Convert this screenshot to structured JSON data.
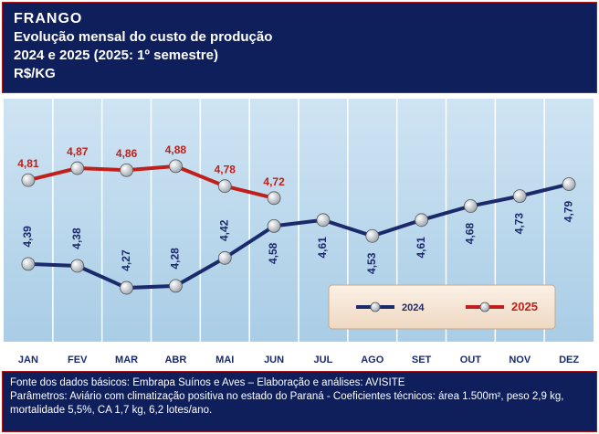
{
  "header": {
    "title": "FRANGO",
    "subtitle": "Evolução mensal do custo de produção",
    "period": "2024 e 2025 (2025: 1º semestre)",
    "unit": "R$/KG"
  },
  "chart_data": {
    "type": "line",
    "categories": [
      "JAN",
      "FEV",
      "MAR",
      "ABR",
      "MAI",
      "JUN",
      "JUL",
      "AGO",
      "SET",
      "OUT",
      "NOV",
      "DEZ"
    ],
    "series": [
      {
        "name": "2024",
        "color": "#1b2a6b",
        "values": [
          4.39,
          4.38,
          4.27,
          4.28,
          4.42,
          4.58,
          4.61,
          4.53,
          4.61,
          4.68,
          4.73,
          4.79
        ],
        "value_labels": [
          "4,39",
          "4,38",
          "4,27",
          "4,28",
          "4,42",
          "4,58",
          "4,61",
          "4,53",
          "4,61",
          "4,68",
          "4,73",
          "4,79"
        ]
      },
      {
        "name": "2025",
        "color": "#c0201b",
        "values": [
          4.81,
          4.87,
          4.86,
          4.88,
          4.78,
          4.72,
          null,
          null,
          null,
          null,
          null,
          null
        ],
        "value_labels": [
          "4,81",
          "4,87",
          "4,86",
          "4,88",
          "4,78",
          "4,72",
          null,
          null,
          null,
          null,
          null,
          null
        ]
      }
    ],
    "ylim": [
      4.0,
      5.2
    ],
    "legend": "lower right",
    "grid": true
  },
  "footer": {
    "source": "Fonte dos dados básicos: Embrapa Suínos e Aves – Elaboração e análises: AVISITE",
    "notes": "Parâmetros: Aviário com climatização positiva no estado do Paraná - Coeficientes técnicos: área 1.500m², peso 2,9 kg, mortalidade 5,5%, CA 1,7 kg, 6,2 lotes/ano."
  }
}
